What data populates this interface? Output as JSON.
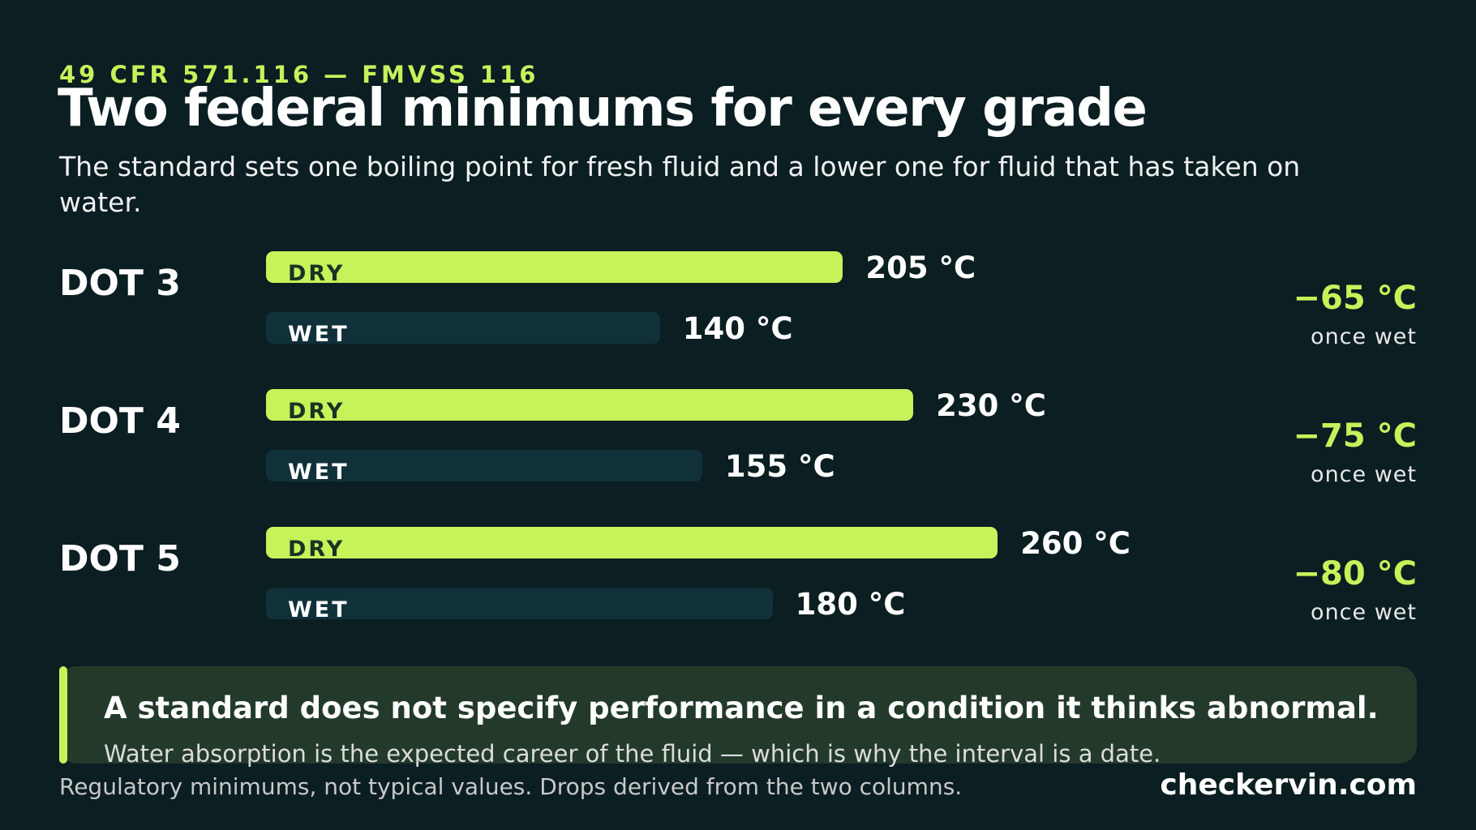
{
  "chart_data": {
    "type": "bar",
    "kicker": "49 CFR 571.116 — FMVSS 116",
    "title": "Two federal minimums for every grade",
    "subtitle": "The standard sets one boiling point for fresh fluid and a lower one for fluid that has taken on water.",
    "categories": [
      "DOT 3",
      "DOT 4",
      "DOT 5"
    ],
    "series": [
      {
        "name": "DRY",
        "color": "#c6f25a",
        "values": [
          205,
          230,
          260
        ],
        "value_labels": [
          "205 °C",
          "230 °C",
          "260 °C"
        ]
      },
      {
        "name": "WET",
        "color": "#11313a",
        "values": [
          140,
          155,
          180
        ],
        "value_labels": [
          "140 °C",
          "155 °C",
          "180 °C"
        ]
      }
    ],
    "drops": {
      "values": [
        -65,
        -75,
        -80
      ],
      "value_labels": [
        "−65 °C",
        "−75 °C",
        "−80 °C"
      ],
      "caption": "once wet"
    }
  },
  "callout": {
    "headline": "A standard does not specify performance in a condition it thinks abnormal.",
    "body": "Water absorption is the expected career of the fluid — which is why the interval is a date."
  },
  "footer": {
    "note": "Regulatory minimums, not typical values. Drops derived from the two columns.",
    "brand": "checkervin.com"
  }
}
